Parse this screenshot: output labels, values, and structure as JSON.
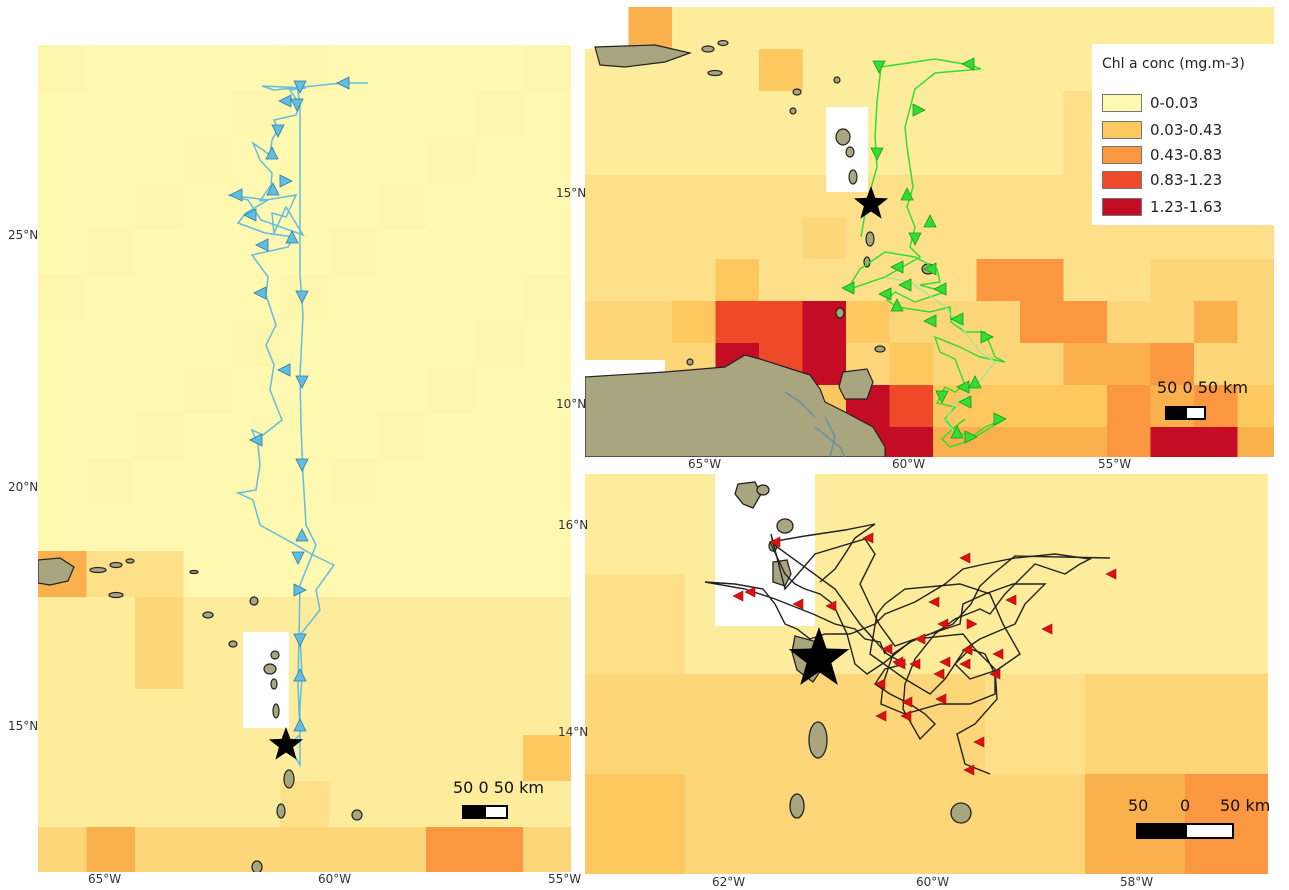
{
  "legend": {
    "title": "Chl a conc (mg.m-3)",
    "items": [
      {
        "label": "0-0.03",
        "color": "#fff8b0"
      },
      {
        "label": "0.03-0.43",
        "color": "#fdc860"
      },
      {
        "label": "0.43-0.83",
        "color": "#fb9641"
      },
      {
        "label": "0.83-1.23",
        "color": "#ee4a2a"
      },
      {
        "label": "1.23-1.63",
        "color": "#c40d25"
      }
    ]
  },
  "colors": {
    "land": "#a9a67f",
    "track_left": "#62bde0",
    "track_top_right": "#33dd33",
    "track_bottom_right": "#222222",
    "markers_bottom_right": "#dd1111",
    "no_data": "#ffffff"
  },
  "panels": {
    "left": {
      "lat_labels": [
        "25°N",
        "20°N",
        "15°N"
      ],
      "lon_labels": [
        "65°W",
        "60°W",
        "55°W"
      ],
      "scale_text": "50 0 50 km"
    },
    "top_right": {
      "lat_labels": [
        "15°N",
        "10°N"
      ],
      "lon_labels": [
        "65°W",
        "60°W",
        "55°W"
      ],
      "scale_text": "50 0 50 km"
    },
    "bottom_right": {
      "lat_labels": [
        "16°N",
        "14°N"
      ],
      "lon_labels": [
        "62°W",
        "60°W",
        "58°W"
      ],
      "scale_labels": [
        "50",
        "0",
        "50 km"
      ]
    }
  }
}
